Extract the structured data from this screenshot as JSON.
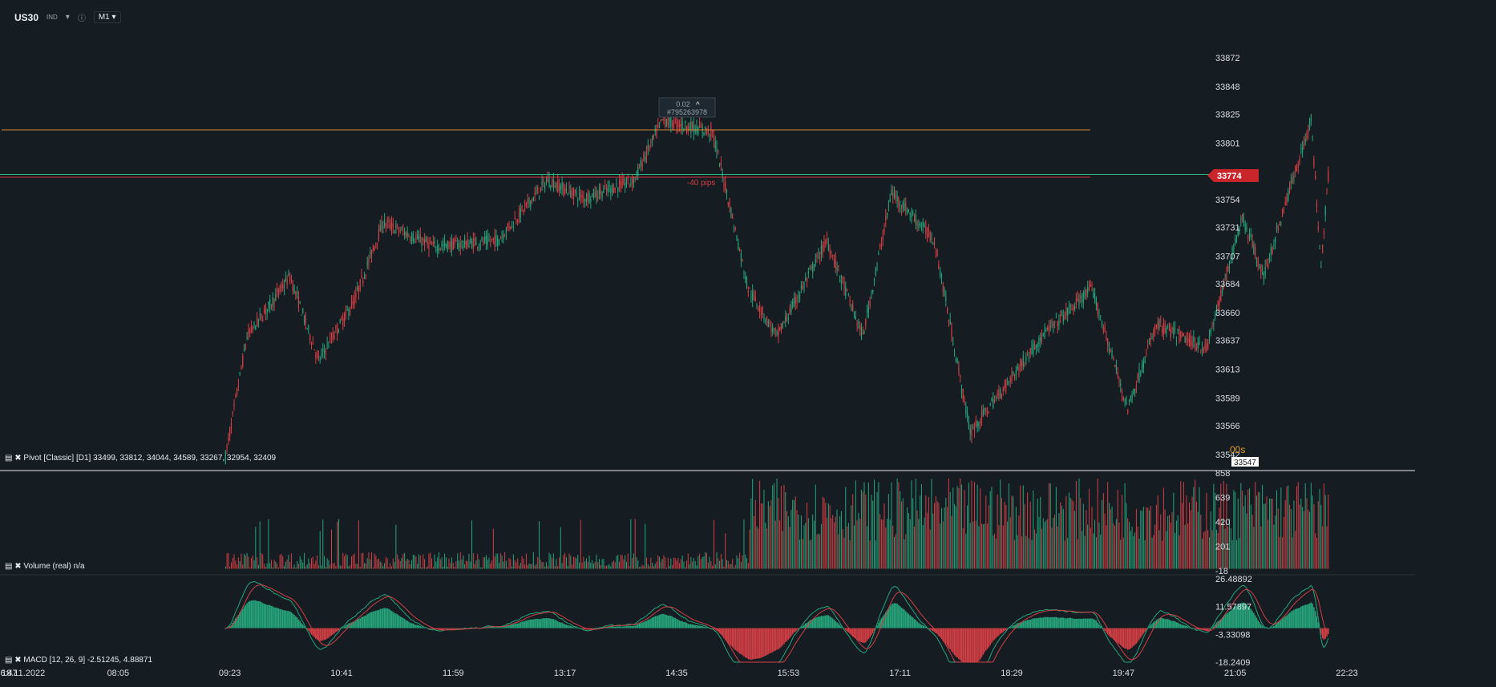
{
  "header": {
    "symbol": "US30",
    "class": "IND",
    "timeframe": "M1",
    "dropdown_icon": "caret-down-icon",
    "info_icon": "info-icon"
  },
  "colors": {
    "background": "#151c22",
    "bull": "#26a47a",
    "bear": "#d23f45",
    "resistance": "#d08a33",
    "bid_line": "#2ebc82",
    "ask_line": "#c8353b",
    "price_badge": "#c9262c"
  },
  "price_axis": {
    "ticks": [
      "33872",
      "33848",
      "33825",
      "33801",
      "33774",
      "33754",
      "33731",
      "33707",
      "33684",
      "33660",
      "33637",
      "33613",
      "33589",
      "33566",
      "33542"
    ],
    "current_price": "33774",
    "countdown": "00s",
    "cursor_price": "33547"
  },
  "time_axis": {
    "date": "18.11.2022",
    "labels": [
      "06:47",
      "08:05",
      "09:23",
      "10:41",
      "11:59",
      "13:17",
      "14:35",
      "15:53",
      "17:11",
      "18:29",
      "19:47",
      "21:05",
      "22:23"
    ]
  },
  "annotations": {
    "order_lot": "0.02",
    "order_id": "#795263978",
    "pips_label": "-40 pips"
  },
  "indicators": {
    "pivot": {
      "label": "Pivot  [Classic]  [D1]",
      "values": "33499,  33812,  34044,  34589,  33267,  32954,  32409"
    },
    "volume": {
      "label": "Volume  (real)  n/a",
      "ticks": [
        "858",
        "639",
        "420",
        "201",
        "-18"
      ]
    },
    "macd": {
      "label": "MACD [12, 26, 9]",
      "values": "-2.51245,  4.88871",
      "ticks": [
        "26.48892",
        "11.57897",
        "-3.33098",
        "-18.2409"
      ]
    }
  },
  "chart_data": {
    "type": "candlestick",
    "symbol": "US30",
    "timeframe": "M1",
    "y_range": [
      33530,
      33880
    ],
    "resistance_level": 33812,
    "current_price": 33774,
    "price_path": [
      {
        "time": "09:20",
        "price": 33540
      },
      {
        "time": "09:35",
        "price": 33640
      },
      {
        "time": "10:05",
        "price": 33690
      },
      {
        "time": "10:25",
        "price": 33620
      },
      {
        "time": "10:50",
        "price": 33670
      },
      {
        "time": "11:10",
        "price": 33735
      },
      {
        "time": "11:45",
        "price": 33715
      },
      {
        "time": "12:30",
        "price": 33720
      },
      {
        "time": "13:05",
        "price": 33770
      },
      {
        "time": "13:30",
        "price": 33755
      },
      {
        "time": "14:05",
        "price": 33770
      },
      {
        "time": "14:25",
        "price": 33820
      },
      {
        "time": "15:00",
        "price": 33810
      },
      {
        "time": "15:10",
        "price": 33760
      },
      {
        "time": "15:25",
        "price": 33680
      },
      {
        "time": "15:45",
        "price": 33640
      },
      {
        "time": "16:20",
        "price": 33720
      },
      {
        "time": "16:45",
        "price": 33640
      },
      {
        "time": "17:05",
        "price": 33760
      },
      {
        "time": "17:35",
        "price": 33720
      },
      {
        "time": "18:00",
        "price": 33560
      },
      {
        "time": "18:50",
        "price": 33640
      },
      {
        "time": "19:25",
        "price": 33680
      },
      {
        "time": "19:50",
        "price": 33580
      },
      {
        "time": "20:10",
        "price": 33650
      },
      {
        "time": "20:45",
        "price": 33630
      },
      {
        "time": "21:10",
        "price": 33740
      },
      {
        "time": "21:25",
        "price": 33690
      },
      {
        "time": "21:45",
        "price": 33770
      },
      {
        "time": "21:58",
        "price": 33820
      },
      {
        "time": "22:05",
        "price": 33700
      },
      {
        "time": "22:10",
        "price": 33774
      }
    ],
    "macd_range": [
      -18.2409,
      26.48892
    ],
    "volume_range": [
      -18,
      858
    ]
  }
}
